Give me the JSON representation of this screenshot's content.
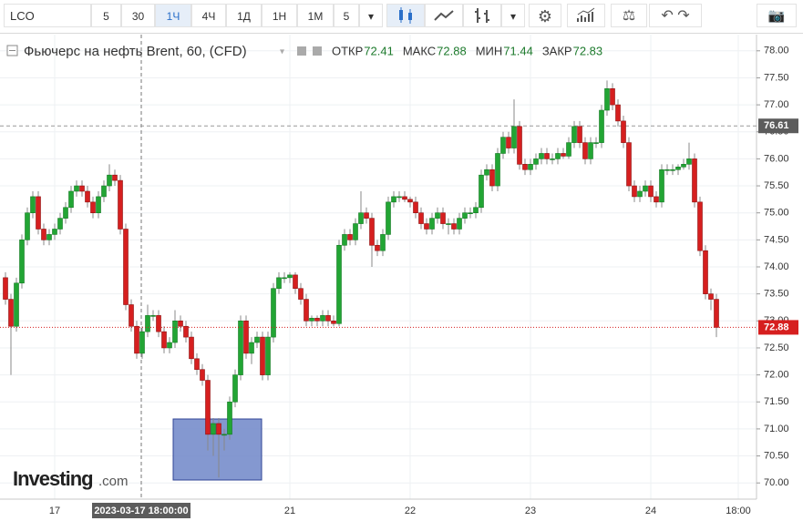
{
  "toolbar": {
    "symbol": "LCO",
    "intervals": [
      "5",
      "30",
      "1Ч",
      "4Ч",
      "1Д",
      "1Н",
      "1М",
      "5"
    ]
  },
  "logo": {
    "main": "Investing",
    "suffix": ".com"
  },
  "chart_data": {
    "type": "candlestick",
    "title": "Фьючерс на нефть Brent, 60, (CFD)",
    "ohlc_legend": [
      {
        "label": "ОТКР",
        "value": 72.41
      },
      {
        "label": "МАКС",
        "value": 72.88
      },
      {
        "label": "МИН",
        "value": 71.44
      },
      {
        "label": "ЗАКР",
        "value": 72.83
      }
    ],
    "crosshair_label": "2023-03-17 18:00:00",
    "up_color": "#22a534",
    "down_color": "#d61f1f",
    "last_price": 72.88,
    "last_price_color": "#d61f1f",
    "ref_price": 76.61,
    "grid": true,
    "ylim": [
      69.7,
      78.3
    ],
    "yticks": [
      {
        "value": 70,
        "label": "70.00"
      },
      {
        "value": 70.5,
        "label": "70.50"
      },
      {
        "value": 71,
        "label": "71.00"
      },
      {
        "value": 71.5,
        "label": "71.50"
      },
      {
        "value": 72,
        "label": "72.00"
      },
      {
        "value": 72.5,
        "label": "72.50"
      },
      {
        "value": 73,
        "label": "73.00"
      },
      {
        "value": 73.5,
        "label": "73.50"
      },
      {
        "value": 74,
        "label": "74.00"
      },
      {
        "value": 74.5,
        "label": "74.50"
      },
      {
        "value": 75,
        "label": "75.00"
      },
      {
        "value": 75.5,
        "label": "75.50"
      },
      {
        "value": 76,
        "label": "76.00"
      },
      {
        "value": 76.5,
        "label": "76.50"
      },
      {
        "value": 77,
        "label": "77.00"
      },
      {
        "value": 77.5,
        "label": "77.50"
      },
      {
        "value": 78,
        "label": "78.00"
      }
    ],
    "categories": [
      null,
      null,
      null,
      null,
      null,
      null,
      null,
      null,
      null,
      "17",
      null,
      null,
      null,
      null,
      null,
      null,
      null,
      null,
      null,
      null,
      null,
      null,
      null,
      null,
      null,
      null,
      null,
      null,
      null,
      null,
      null,
      null,
      null,
      null,
      null,
      null,
      null,
      null,
      null,
      null,
      null,
      null,
      null,
      null,
      null,
      null,
      null,
      null,
      null,
      null,
      null,
      null,
      "21",
      null,
      null,
      null,
      null,
      null,
      null,
      null,
      null,
      null,
      null,
      null,
      null,
      null,
      null,
      null,
      null,
      null,
      null,
      null,
      null,
      null,
      "22",
      null,
      null,
      null,
      null,
      null,
      null,
      null,
      null,
      null,
      null,
      null,
      null,
      null,
      null,
      null,
      null,
      null,
      null,
      null,
      null,
      null,
      "23",
      null,
      null,
      null,
      null,
      null,
      null,
      null,
      null,
      null,
      null,
      null,
      null,
      null,
      null,
      null,
      null,
      null,
      null,
      null,
      null,
      null,
      "24",
      null,
      null,
      null,
      null,
      null,
      null,
      null,
      null,
      null,
      null,
      null,
      null,
      null,
      null,
      null,
      "18:00"
    ],
    "open": [
      73.8,
      73.4,
      72.9,
      73.7,
      74.5,
      75.0,
      75.3,
      74.7,
      74.5,
      74.6,
      74.7,
      74.9,
      75.1,
      75.4,
      75.5,
      75.4,
      75.2,
      75.0,
      75.3,
      75.5,
      75.7,
      75.6,
      74.7,
      73.3,
      72.9,
      72.4,
      72.8,
      73.1,
      73.1,
      72.8,
      72.5,
      72.6,
      73.0,
      72.9,
      72.7,
      72.3,
      72.1,
      71.9,
      70.9,
      71.1,
      70.9,
      70.9,
      71.5,
      72.0,
      73.0,
      72.4,
      72.6,
      72.7,
      72.0,
      72.7,
      73.6,
      73.8,
      73.8,
      73.85,
      73.6,
      73.4,
      73.0,
      73.05,
      73.0,
      73.1,
      73.0,
      72.95,
      74.4,
      74.6,
      74.5,
      74.8,
      75.0,
      74.9,
      74.4,
      74.3,
      74.6,
      75.2,
      75.3,
      75.3,
      75.25,
      75.2,
      75.0,
      74.8,
      74.7,
      74.9,
      75.0,
      74.8,
      74.8,
      74.7,
      74.9,
      75.0,
      75.0,
      75.1,
      75.7,
      75.8,
      75.5,
      76.1,
      76.4,
      76.2,
      76.6,
      75.9,
      75.8,
      75.9,
      76.0,
      76.1,
      76.0,
      76.0,
      76.1,
      76.05,
      76.3,
      76.6,
      76.3,
      76.0,
      76.3,
      76.3,
      76.9,
      77.3,
      77.0,
      76.7,
      76.3,
      75.5,
      75.3,
      75.4,
      75.5,
      75.3,
      75.2,
      75.8,
      75.8,
      75.8,
      75.85,
      75.9,
      76.0,
      75.2,
      74.3,
      73.5,
      73.4,
      null,
      null,
      null,
      null
    ],
    "high": [
      73.9,
      73.5,
      73.8,
      74.6,
      75.1,
      75.4,
      75.4,
      74.8,
      74.7,
      74.8,
      75.0,
      75.2,
      75.5,
      75.6,
      75.6,
      75.5,
      75.3,
      75.4,
      75.6,
      75.9,
      75.8,
      75.7,
      74.8,
      73.4,
      73.0,
      72.9,
      73.3,
      73.2,
      73.2,
      72.9,
      72.7,
      73.2,
      73.1,
      73.0,
      72.8,
      72.4,
      72.2,
      72.0,
      71.2,
      71.2,
      71.0,
      71.6,
      72.1,
      73.1,
      73.1,
      72.7,
      72.8,
      72.8,
      72.8,
      73.7,
      73.9,
      73.9,
      73.9,
      73.9,
      73.7,
      73.5,
      73.1,
      73.1,
      73.2,
      73.2,
      73.1,
      74.5,
      74.7,
      74.7,
      74.9,
      75.4,
      75.1,
      75.0,
      74.5,
      74.7,
      75.3,
      75.4,
      75.4,
      75.4,
      75.3,
      75.3,
      75.1,
      74.9,
      75.0,
      75.1,
      75.1,
      74.9,
      74.9,
      75.0,
      75.1,
      75.1,
      75.2,
      75.8,
      75.9,
      75.9,
      76.2,
      76.5,
      76.5,
      77.1,
      76.7,
      76.0,
      76.0,
      76.1,
      76.2,
      76.2,
      76.1,
      76.2,
      76.2,
      76.4,
      76.7,
      76.7,
      76.4,
      76.4,
      76.4,
      77.0,
      77.45,
      77.4,
      77.1,
      76.8,
      76.4,
      75.6,
      75.5,
      75.6,
      75.6,
      75.4,
      75.9,
      75.9,
      75.9,
      75.9,
      76.0,
      76.3,
      76.1,
      75.3,
      74.4,
      73.6,
      73.5,
      null,
      null,
      null,
      null
    ],
    "low": [
      73.3,
      72.0,
      72.8,
      73.6,
      74.4,
      74.9,
      74.6,
      74.4,
      74.4,
      74.5,
      74.6,
      74.8,
      75.0,
      75.3,
      75.3,
      75.1,
      74.9,
      74.9,
      75.2,
      75.4,
      75.5,
      74.6,
      73.2,
      72.8,
      72.3,
      72.3,
      72.7,
      73.0,
      72.7,
      72.4,
      72.4,
      72.5,
      72.8,
      72.6,
      72.2,
      72.0,
      71.8,
      70.6,
      70.5,
      70.1,
      70.6,
      70.8,
      71.4,
      71.9,
      72.3,
      72.2,
      72.5,
      71.9,
      71.9,
      72.6,
      73.5,
      73.7,
      73.7,
      73.5,
      73.3,
      72.9,
      72.9,
      72.9,
      72.9,
      72.9,
      72.9,
      72.9,
      74.3,
      74.4,
      74.4,
      74.7,
      74.8,
      74.0,
      74.2,
      74.2,
      74.5,
      75.1,
      75.2,
      75.2,
      75.1,
      74.9,
      74.7,
      74.6,
      74.6,
      74.8,
      74.7,
      74.6,
      74.6,
      74.6,
      74.8,
      74.9,
      74.9,
      75.0,
      75.6,
      75.4,
      75.4,
      76.0,
      76.1,
      76.1,
      75.8,
      75.7,
      75.7,
      75.8,
      75.9,
      75.9,
      75.9,
      75.9,
      76.0,
      76.0,
      76.2,
      76.2,
      75.9,
      75.9,
      76.2,
      76.2,
      76.8,
      76.9,
      76.6,
      76.2,
      75.4,
      75.2,
      75.2,
      75.3,
      75.2,
      75.1,
      75.1,
      75.7,
      75.7,
      75.7,
      75.8,
      75.8,
      75.1,
      74.2,
      73.4,
      73.2,
      72.7,
      null,
      null,
      null,
      null
    ],
    "close": [
      73.4,
      72.9,
      73.7,
      74.5,
      75.0,
      75.3,
      74.7,
      74.5,
      74.6,
      74.7,
      74.9,
      75.1,
      75.4,
      75.5,
      75.4,
      75.2,
      75.0,
      75.3,
      75.5,
      75.7,
      75.6,
      74.7,
      73.3,
      72.9,
      72.4,
      72.8,
      73.1,
      73.1,
      72.8,
      72.5,
      72.6,
      73.0,
      72.9,
      72.7,
      72.3,
      72.1,
      71.9,
      70.9,
      71.1,
      70.9,
      70.9,
      71.5,
      72.0,
      73.0,
      72.4,
      72.6,
      72.7,
      72.0,
      72.7,
      73.6,
      73.8,
      73.8,
      73.85,
      73.6,
      73.4,
      73.0,
      73.05,
      73.0,
      73.1,
      73.0,
      72.95,
      74.4,
      74.6,
      74.5,
      74.8,
      75.0,
      74.9,
      74.4,
      74.3,
      74.6,
      75.2,
      75.3,
      75.3,
      75.25,
      75.2,
      75.0,
      74.8,
      74.7,
      74.9,
      75.0,
      74.8,
      74.8,
      74.7,
      74.9,
      75.0,
      75.0,
      75.1,
      75.7,
      75.8,
      75.5,
      76.1,
      76.4,
      76.2,
      76.6,
      75.9,
      75.8,
      75.9,
      76.0,
      76.1,
      76.0,
      76.0,
      76.1,
      76.05,
      76.3,
      76.6,
      76.3,
      76.0,
      76.3,
      76.3,
      76.9,
      77.3,
      77.0,
      76.7,
      76.3,
      75.5,
      75.3,
      75.4,
      75.5,
      75.3,
      75.2,
      75.8,
      75.8,
      75.8,
      75.85,
      75.9,
      76.0,
      75.2,
      74.3,
      73.5,
      73.4,
      72.88,
      null,
      null,
      null,
      null
    ]
  }
}
